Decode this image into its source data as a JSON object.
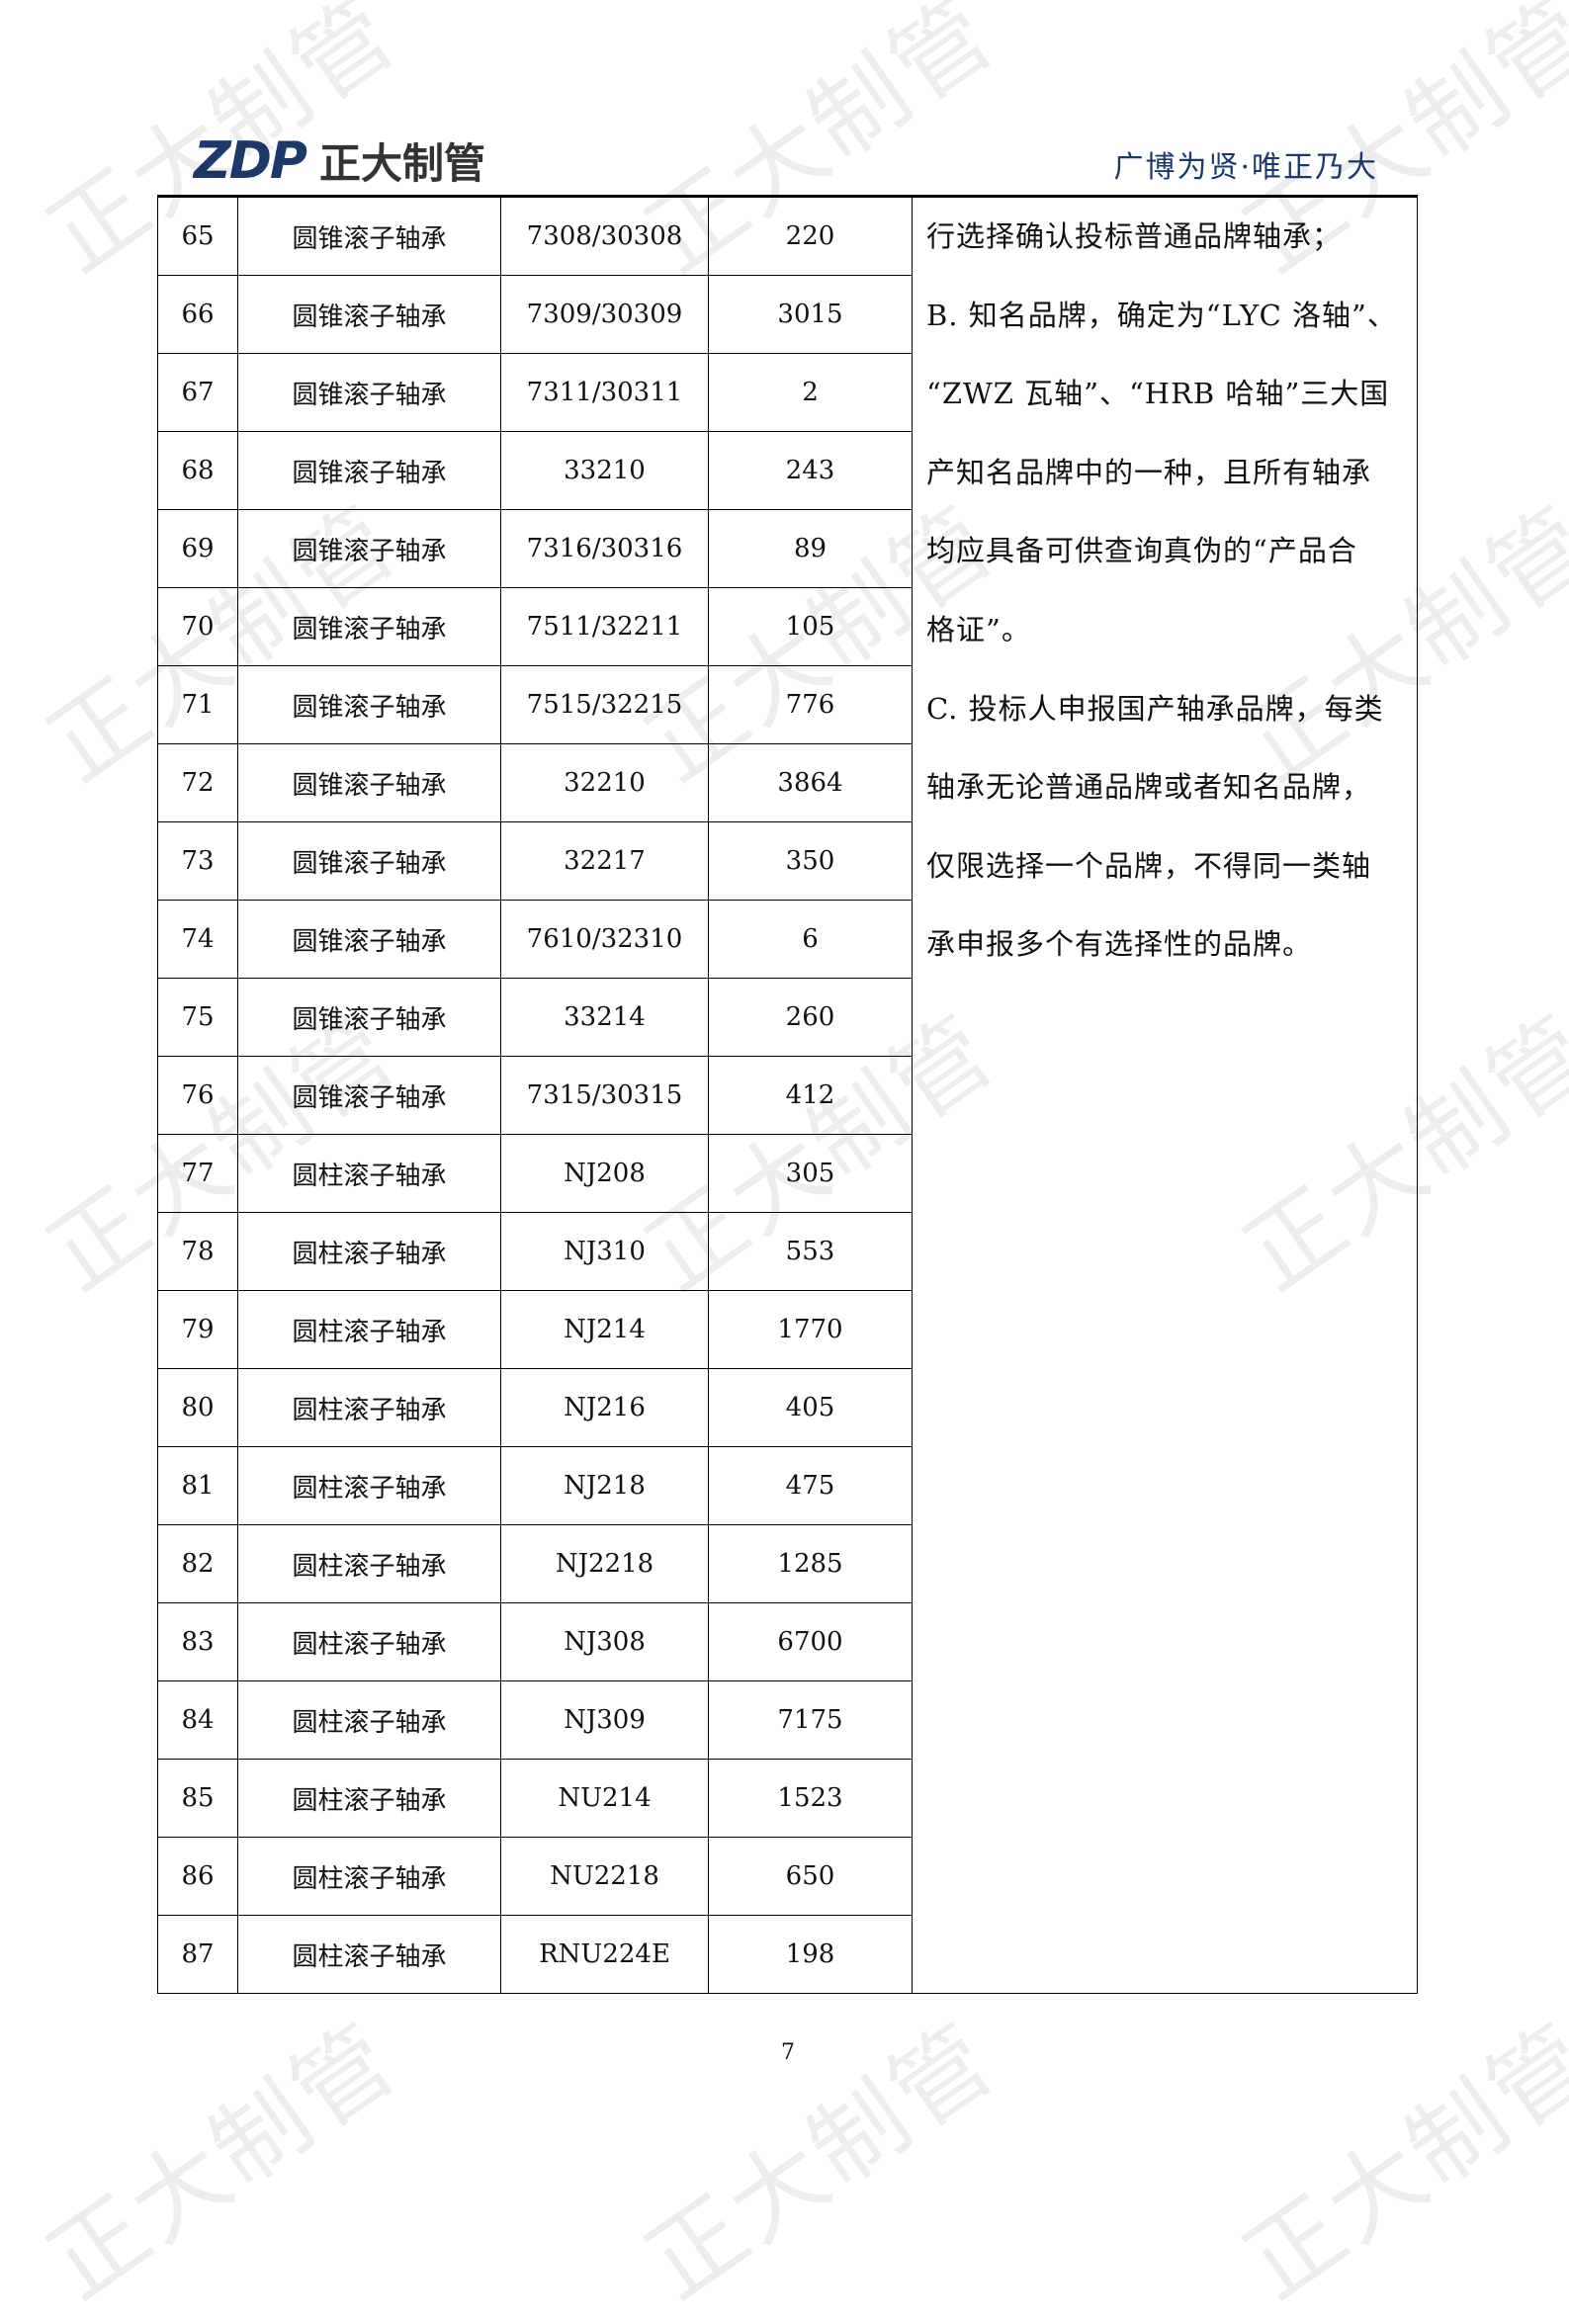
{
  "header": {
    "logo_mark": "ZDP",
    "logo_name": "正大制管",
    "tagline": "广博为贤·唯正乃大"
  },
  "watermark": "正大制管",
  "table": {
    "rows": [
      [
        "65",
        "圆锥滚子轴承",
        "7308/30308",
        "220"
      ],
      [
        "66",
        "圆锥滚子轴承",
        "7309/30309",
        "3015"
      ],
      [
        "67",
        "圆锥滚子轴承",
        "7311/30311",
        "2"
      ],
      [
        "68",
        "圆锥滚子轴承",
        "33210",
        "243"
      ],
      [
        "69",
        "圆锥滚子轴承",
        "7316/30316",
        "89"
      ],
      [
        "70",
        "圆锥滚子轴承",
        "7511/32211",
        "105"
      ],
      [
        "71",
        "圆锥滚子轴承",
        "7515/32215",
        "776"
      ],
      [
        "72",
        "圆锥滚子轴承",
        "32210",
        "3864"
      ],
      [
        "73",
        "圆锥滚子轴承",
        "32217",
        "350"
      ],
      [
        "74",
        "圆锥滚子轴承",
        "7610/32310",
        "6"
      ],
      [
        "75",
        "圆锥滚子轴承",
        "33214",
        "260"
      ],
      [
        "76",
        "圆锥滚子轴承",
        "7315/30315",
        "412"
      ],
      [
        "77",
        "圆柱滚子轴承",
        "NJ208",
        "305"
      ],
      [
        "78",
        "圆柱滚子轴承",
        "NJ310",
        "553"
      ],
      [
        "79",
        "圆柱滚子轴承",
        "NJ214",
        "1770"
      ],
      [
        "80",
        "圆柱滚子轴承",
        "NJ216",
        "405"
      ],
      [
        "81",
        "圆柱滚子轴承",
        "NJ218",
        "475"
      ],
      [
        "82",
        "圆柱滚子轴承",
        "NJ2218",
        "1285"
      ],
      [
        "83",
        "圆柱滚子轴承",
        "NJ308",
        "6700"
      ],
      [
        "84",
        "圆柱滚子轴承",
        "NJ309",
        "7175"
      ],
      [
        "85",
        "圆柱滚子轴承",
        "NU214",
        "1523"
      ],
      [
        "86",
        "圆柱滚子轴承",
        "NU2218",
        "650"
      ],
      [
        "87",
        "圆柱滚子轴承",
        "RNU224E",
        "198"
      ]
    ],
    "note_lines": [
      "行选择确认投标普通品牌轴承；",
      "B. 知名品牌，确定为“LYC 洛轴”、",
      "“ZWZ 瓦轴”、“HRB 哈轴”三大国",
      "产知名品牌中的一种，且所有轴承",
      "均应具备可供查询真伪的“产品合",
      "格证”。",
      "C. 投标人申报国产轴承品牌，每类",
      "轴承无论普通品牌或者知名品牌，",
      "仅限选择一个品牌，不得同一类轴",
      "承申报多个有选择性的品牌。"
    ]
  },
  "footer": {
    "page_number": "7"
  }
}
